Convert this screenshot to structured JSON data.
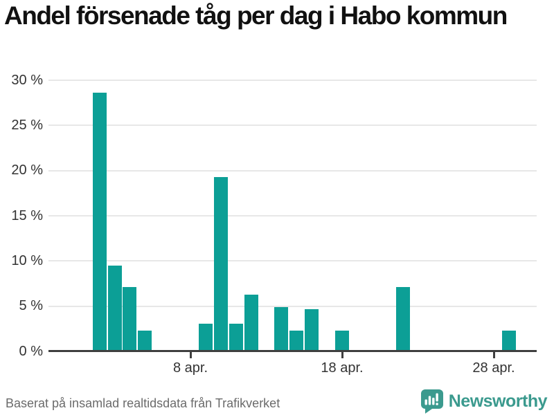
{
  "title": "Andel försenade tåg per dag i Habo kommun",
  "footer": {
    "source": "Baserat på insamlad realtidsdata från Trafikverket",
    "brand": "Newsworthy"
  },
  "colors": {
    "bar": "#0c9f96",
    "axis": "#3f3f3f",
    "gridline": "#e7e7e7",
    "title_text": "#111111",
    "tick_text": "#333333",
    "footer_text": "#6b6b6b",
    "brand_teal": "#3b9a8e"
  },
  "chart_data": {
    "type": "bar",
    "title": "Andel försenade tåg per dag i Habo kommun",
    "xlabel": "",
    "ylabel": "",
    "unit": "%",
    "ylim": [
      0,
      30
    ],
    "grid": true,
    "legend": "none",
    "x_axis": "days of April",
    "y_ticks": [
      {
        "value": 0,
        "label": "0 %"
      },
      {
        "value": 5,
        "label": "5 %"
      },
      {
        "value": 10,
        "label": "10 %"
      },
      {
        "value": 15,
        "label": "15 %"
      },
      {
        "value": 20,
        "label": "20 %"
      },
      {
        "value": 25,
        "label": "25 %"
      },
      {
        "value": 30,
        "label": "30 %"
      }
    ],
    "x_ticks": [
      {
        "day": 8,
        "label": "8 apr."
      },
      {
        "day": 18,
        "label": "18 apr."
      },
      {
        "day": 28,
        "label": "28 apr."
      }
    ],
    "bars": [
      {
        "date": "2 apr.",
        "day": 2,
        "value": 28.6
      },
      {
        "date": "3 apr.",
        "day": 3,
        "value": 9.5
      },
      {
        "date": "4 apr.",
        "day": 4,
        "value": 7.1
      },
      {
        "date": "5 apr.",
        "day": 5,
        "value": 2.3
      },
      {
        "date": "9 apr.",
        "day": 9,
        "value": 3.1
      },
      {
        "date": "10 apr.",
        "day": 10,
        "value": 19.3
      },
      {
        "date": "11 apr.",
        "day": 11,
        "value": 3.1
      },
      {
        "date": "12 apr.",
        "day": 12,
        "value": 6.3
      },
      {
        "date": "14 apr.",
        "day": 14,
        "value": 4.9
      },
      {
        "date": "15 apr.",
        "day": 15,
        "value": 2.3
      },
      {
        "date": "16 apr.",
        "day": 16,
        "value": 4.7
      },
      {
        "date": "18 apr.",
        "day": 18,
        "value": 2.3
      },
      {
        "date": "22 apr.",
        "day": 22,
        "value": 7.1
      },
      {
        "date": "29 apr.",
        "day": 29,
        "value": 2.3
      }
    ]
  }
}
